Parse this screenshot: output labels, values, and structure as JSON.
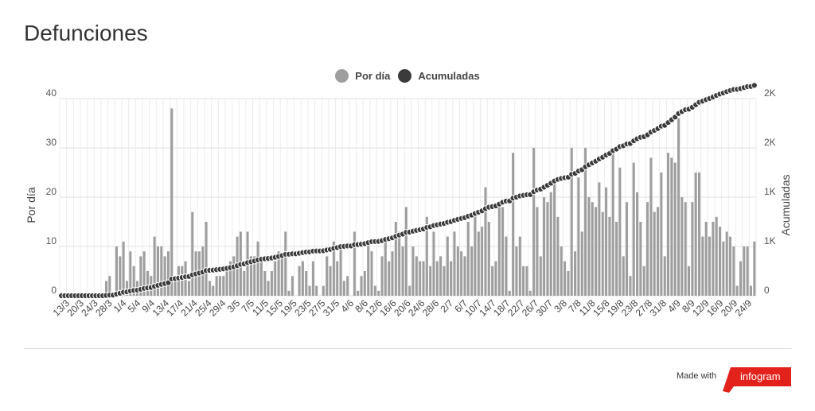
{
  "title": "Defunciones",
  "colors": {
    "bar": "#9e9e9e",
    "line": "#3b3b3b",
    "brand": "#e2221b"
  },
  "legend": [
    {
      "label": "Por día",
      "color": "#9e9e9e",
      "icon": "circle"
    },
    {
      "label": "Acumuladas",
      "color": "#3b3b3b",
      "icon": "circle"
    }
  ],
  "footer": {
    "made_with": "Made with",
    "brand": "infogram"
  },
  "chart_data": {
    "type": "bar+line",
    "title": "Defunciones",
    "x_tick_labels": [
      "13/3",
      "20/3",
      "24/3",
      "28/3",
      "1/4",
      "5/4",
      "9/4",
      "13/4",
      "17/4",
      "21/4",
      "25/4",
      "29/4",
      "3/5",
      "7/5",
      "11/5",
      "15/5",
      "19/5",
      "23/5",
      "27/5",
      "31/5",
      "4/6",
      "8/6",
      "12/6",
      "16/6",
      "20/6",
      "24/6",
      "28/6",
      "2/7",
      "6/7",
      "10/7",
      "14/7",
      "18/7",
      "22/7",
      "26/7",
      "30/7",
      "3/8",
      "7/8",
      "11/8",
      "15/8",
      "19/8",
      "23/8",
      "27/8",
      "31/8",
      "4/9",
      "8/9",
      "12/9",
      "16/9",
      "20/9",
      "24/9"
    ],
    "y_left": {
      "label": "Por día",
      "ticks": [
        "0",
        "10",
        "20",
        "30",
        "40"
      ],
      "range": [
        0,
        40
      ]
    },
    "y_right": {
      "label": "Acumuladas",
      "ticks": [
        "0",
        "1K",
        "1K",
        "2K",
        "2K"
      ],
      "range": [
        0,
        2000
      ]
    },
    "grid": true,
    "legend_position": "top-center",
    "series": [
      {
        "name": "Por día",
        "type": "bar",
        "values": [
          0,
          0,
          0,
          0,
          0,
          0,
          0,
          0,
          0,
          0,
          0,
          0,
          0,
          3,
          4,
          0,
          10,
          8,
          11,
          3,
          9,
          6,
          3,
          8,
          9,
          5,
          4,
          12,
          10,
          10,
          8,
          9,
          38,
          3,
          6,
          6,
          7,
          3,
          17,
          9,
          9,
          10,
          15,
          3,
          2,
          4,
          4,
          4,
          6,
          7,
          8,
          12,
          13,
          5,
          13,
          8,
          8,
          11,
          7,
          5,
          3,
          5,
          7,
          9,
          8,
          13,
          1,
          4,
          0,
          6,
          7,
          5,
          2,
          7,
          2,
          0,
          2,
          8,
          6,
          11,
          7,
          10,
          3,
          4,
          0,
          13,
          1,
          4,
          5,
          11,
          9,
          2,
          1,
          8,
          12,
          7,
          9,
          15,
          13,
          10,
          18,
          2,
          10,
          8,
          7,
          7,
          16,
          6,
          13,
          7,
          8,
          6,
          12,
          7,
          13,
          10,
          9,
          8,
          15,
          10,
          17,
          13,
          14,
          22,
          15,
          6,
          7,
          19,
          18,
          12,
          1,
          29,
          10,
          12,
          6,
          6,
          1,
          30,
          18,
          8,
          20,
          19,
          21,
          23,
          16,
          10,
          7,
          5,
          30,
          9,
          24,
          13,
          30,
          20,
          19,
          18,
          23,
          17,
          22,
          16,
          29,
          15,
          26,
          8,
          19,
          4,
          27,
          21,
          15,
          6,
          19,
          28,
          17,
          18,
          25,
          8,
          29,
          28,
          27,
          36,
          20,
          19,
          6,
          19,
          25,
          25,
          12,
          15,
          12,
          15,
          16,
          14,
          11,
          13,
          12,
          10,
          2,
          7,
          10,
          10,
          2,
          11
        ]
      },
      {
        "name": "Acumuladas",
        "type": "line",
        "values": [
          0,
          0,
          0,
          0,
          0,
          0,
          0,
          0,
          0,
          0,
          0,
          0,
          0,
          3,
          7,
          7,
          17,
          25,
          36,
          39,
          48,
          54,
          57,
          65,
          74,
          79,
          83,
          95,
          105,
          115,
          123,
          132,
          170,
          173,
          179,
          185,
          192,
          195,
          212,
          221,
          230,
          240,
          255,
          258,
          260,
          264,
          268,
          272,
          278,
          285,
          293,
          305,
          318,
          323,
          336,
          344,
          352,
          363,
          370,
          375,
          378,
          383,
          390,
          399,
          407,
          420,
          421,
          425,
          425,
          431,
          438,
          443,
          445,
          452,
          454,
          454,
          456,
          464,
          470,
          481,
          488,
          498,
          501,
          505,
          505,
          518,
          519,
          523,
          528,
          539,
          548,
          550,
          551,
          559,
          571,
          578,
          587,
          602,
          615,
          625,
          643,
          645,
          655,
          663,
          670,
          677,
          693,
          699,
          712,
          719,
          727,
          733,
          745,
          752,
          765,
          775,
          784,
          792,
          807,
          817,
          834,
          847,
          861,
          883,
          898,
          904,
          911,
          930,
          948,
          960,
          961,
          990,
          1000,
          1012,
          1018,
          1024,
          1025,
          1055,
          1073,
          1081,
          1101,
          1120,
          1141,
          1164,
          1180,
          1190,
          1197,
          1202,
          1232,
          1241,
          1265,
          1278,
          1308,
          1328,
          1347,
          1365,
          1388,
          1405,
          1427,
          1443,
          1472,
          1487,
          1513,
          1521,
          1540,
          1544,
          1571,
          1592,
          1607,
          1613,
          1632,
          1660,
          1677,
          1695,
          1720,
          1728,
          1757,
          1785,
          1812,
          1848,
          1868,
          1887,
          1893,
          1912,
          1937,
          1962,
          1974,
          1989,
          2001,
          2016,
          2032,
          2046,
          2057,
          2070,
          2082,
          2092,
          2094,
          2101,
          2111,
          2121,
          2123,
          2134
        ]
      }
    ]
  }
}
